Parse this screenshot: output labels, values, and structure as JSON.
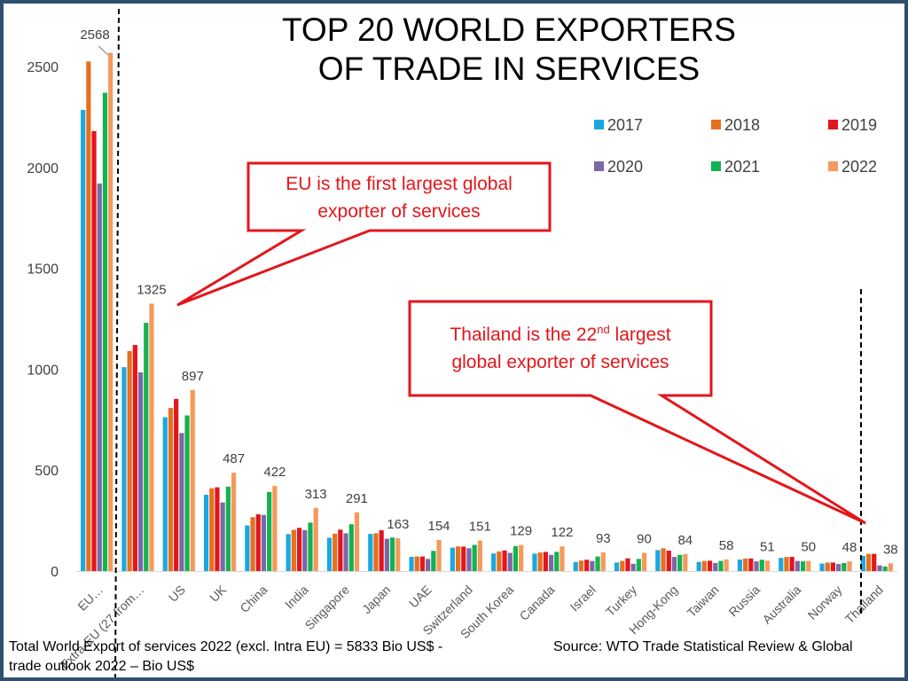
{
  "slide": {
    "title_line1": "TOP 20 WORLD EXPORTERS",
    "title_line2": "OF TRADE IN SERVICES",
    "footer_left_line1": "Total World Export of services 2022 (excl. Intra EU) = 5833 Bio US$ -",
    "footer_left_line2": "trade outlook 2022 – Bio US$",
    "footer_right": "Source: WTO Trade Statistical Review & Global",
    "callout_eu_line1": "EU is the first largest global",
    "callout_eu_line2": "exporter of services",
    "callout_thai_pre": "Thailand is the 22",
    "callout_thai_sup": "nd",
    "callout_thai_post": " largest",
    "callout_thai_line2": "global exporter of services"
  },
  "colors": {
    "series": [
      "#1aa8e0",
      "#e5701e",
      "#e3161b",
      "#7b68a6",
      "#12b250",
      "#f59a5a"
    ],
    "callout": "#e3161b",
    "frame": "#2f4f6f"
  },
  "chart_data": {
    "type": "bar",
    "categories": [
      "EU…",
      "Extra-EU (27 from…",
      "US",
      "UK",
      "China",
      "India",
      "Singapore",
      "Japan",
      "UAE",
      "Switzerland",
      "South Korea",
      "Canada",
      "Israel",
      "Turkey",
      "Hong-Kong",
      "Taiwan",
      "Russia",
      "Australia",
      "Norway",
      "Thailand"
    ],
    "series": [
      {
        "name": "2017",
        "values": [
          2285,
          1010,
          762,
          378,
          226,
          183,
          165,
          184,
          70,
          116,
          87,
          86,
          45,
          42,
          104,
          45,
          57,
          65,
          37,
          75
        ]
      },
      {
        "name": "2018",
        "values": [
          2525,
          1090,
          808,
          410,
          267,
          204,
          185,
          187,
          72,
          122,
          97,
          92,
          52,
          50,
          113,
          50,
          62,
          70,
          42,
          85
        ]
      },
      {
        "name": "2019",
        "values": [
          2180,
          1120,
          853,
          415,
          281,
          214,
          205,
          202,
          72,
          121,
          102,
          95,
          56,
          63,
          101,
          51,
          62,
          70,
          42,
          85
        ]
      },
      {
        "name": "2020",
        "values": [
          1920,
          985,
          684,
          340,
          278,
          203,
          187,
          160,
          60,
          113,
          90,
          80,
          50,
          36,
          70,
          40,
          48,
          50,
          35,
          28
        ]
      },
      {
        "name": "2021",
        "values": [
          2370,
          1230,
          771,
          418,
          392,
          240,
          232,
          166,
          100,
          130,
          123,
          95,
          72,
          60,
          80,
          50,
          56,
          48,
          40,
          22
        ]
      },
      {
        "name": "2022",
        "values": [
          2568,
          1325,
          897,
          487,
          422,
          313,
          291,
          163,
          154,
          151,
          129,
          122,
          93,
          90,
          84,
          58,
          51,
          50,
          48,
          38
        ]
      }
    ],
    "data_labels": [
      "2568",
      "1325",
      "897",
      "487",
      "422",
      "313",
      "291",
      "163",
      "154",
      "151",
      "129",
      "122",
      "93",
      "90",
      "84",
      "58",
      "51",
      "50",
      "48",
      "38"
    ],
    "yticks": [
      "0",
      "500",
      "1000",
      "1500",
      "2000",
      "2500"
    ],
    "ylim": [
      0,
      2500
    ],
    "grid": false,
    "legend_position": "top-right",
    "legend_labels": [
      "2017",
      "2018",
      "2019",
      "2020",
      "2021",
      "2022"
    ]
  }
}
